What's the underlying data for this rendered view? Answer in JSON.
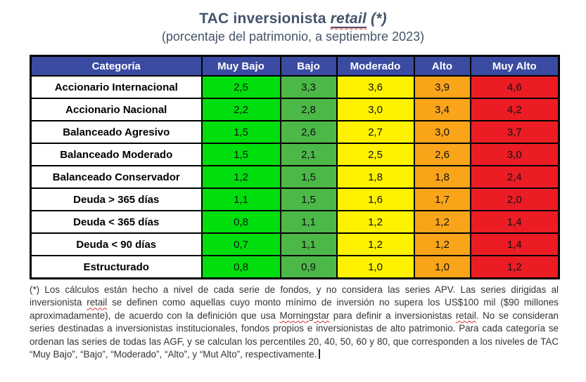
{
  "title": {
    "prefix": "TAC inversionista ",
    "emphasis": "retail",
    "suffix": " (*)",
    "subtitle": "(porcentaje del patrimonio, a septiembre 2023)"
  },
  "colors": {
    "header_bg": "#3B4BA1",
    "title_text": "#44546A",
    "columns": [
      "#00DF0D",
      "#4CB848",
      "#FEF200",
      "#FAA41A",
      "#EC1C24"
    ],
    "squiggle": "#cc3333"
  },
  "table": {
    "headers": [
      "Categoría",
      "Muy Bajo",
      "Bajo",
      "Moderado",
      "Alto",
      "Muy Alto"
    ],
    "rows": [
      {
        "category": "Accionario Internacional",
        "values": [
          "2,5",
          "3,3",
          "3,6",
          "3,9",
          "4,6"
        ]
      },
      {
        "category": "Accionario Nacional",
        "values": [
          "2,2",
          "2,8",
          "3,0",
          "3,4",
          "4,2"
        ]
      },
      {
        "category": "Balanceado Agresivo",
        "values": [
          "1,5",
          "2,6",
          "2,7",
          "3,0",
          "3,7"
        ]
      },
      {
        "category": "Balanceado Moderado",
        "values": [
          "1,5",
          "2,1",
          "2,5",
          "2,6",
          "3,0"
        ]
      },
      {
        "category": "Balanceado Conservador",
        "values": [
          "1,2",
          "1,5",
          "1,8",
          "1,8",
          "2,4"
        ]
      },
      {
        "category": "Deuda > 365 días",
        "values": [
          "1,1",
          "1,5",
          "1,6",
          "1,7",
          "2,0"
        ]
      },
      {
        "category": "Deuda < 365 días",
        "values": [
          "0,8",
          "1,1",
          "1,2",
          "1,2",
          "1,4"
        ]
      },
      {
        "category": "Deuda < 90 días",
        "values": [
          "0,7",
          "1,1",
          "1,2",
          "1,2",
          "1,4"
        ]
      },
      {
        "category": "Estructurado",
        "values": [
          "0,8",
          "0,9",
          "1,0",
          "1,0",
          "1,2"
        ]
      }
    ]
  },
  "footnote": {
    "segments": [
      {
        "text": "(*) Los cálculos están hecho a nivel de cada serie de fondos, y no considera las series APV. Las series dirigidas al inversionista "
      },
      {
        "text": "retail",
        "misspelled": true
      },
      {
        "text": " se definen como aquellas cuyo monto mínimo de inversión no supera los US$100 mil ($90 millones aproximadamente), de acuerdo con la definición que usa "
      },
      {
        "text": "Morningstar",
        "misspelled": true
      },
      {
        "text": " para definir a inversionistas "
      },
      {
        "text": "retail",
        "misspelled": true
      },
      {
        "text": ". No se consideran series destinadas a inversionistas institucionales, fondos propios e inversionistas de alto patrimonio. Para cada categoría se ordenan las series de todas las AGF, y se calculan los percentiles 20, 40, 50, 60 y 80, que corresponden a los niveles de TAC “Muy Bajo”, “Bajo”, “Moderado”, “Alto”, y “Mut Alto”, respectivamente.",
        "cursor_after": true
      }
    ]
  },
  "chart_data": {
    "type": "table",
    "title": "TAC inversionista retail (*)",
    "subtitle": "(porcentaje del patrimonio, a septiembre 2023)",
    "categories": [
      "Accionario Internacional",
      "Accionario Nacional",
      "Balanceado Agresivo",
      "Balanceado Moderado",
      "Balanceado Conservador",
      "Deuda > 365 días",
      "Deuda < 365 días",
      "Deuda < 90 días",
      "Estructurado"
    ],
    "series": [
      {
        "name": "Muy Bajo",
        "values": [
          2.5,
          2.2,
          1.5,
          1.5,
          1.2,
          1.1,
          0.8,
          0.7,
          0.8
        ]
      },
      {
        "name": "Bajo",
        "values": [
          3.3,
          2.8,
          2.6,
          2.1,
          1.5,
          1.5,
          1.1,
          1.1,
          0.9
        ]
      },
      {
        "name": "Moderado",
        "values": [
          3.6,
          3.0,
          2.7,
          2.5,
          1.8,
          1.6,
          1.2,
          1.2,
          1.0
        ]
      },
      {
        "name": "Alto",
        "values": [
          3.9,
          3.4,
          3.0,
          2.6,
          1.8,
          1.7,
          1.2,
          1.2,
          1.0
        ]
      },
      {
        "name": "Muy Alto",
        "values": [
          4.6,
          4.2,
          3.7,
          3.0,
          2.4,
          2.0,
          1.4,
          1.4,
          1.2
        ]
      }
    ]
  }
}
